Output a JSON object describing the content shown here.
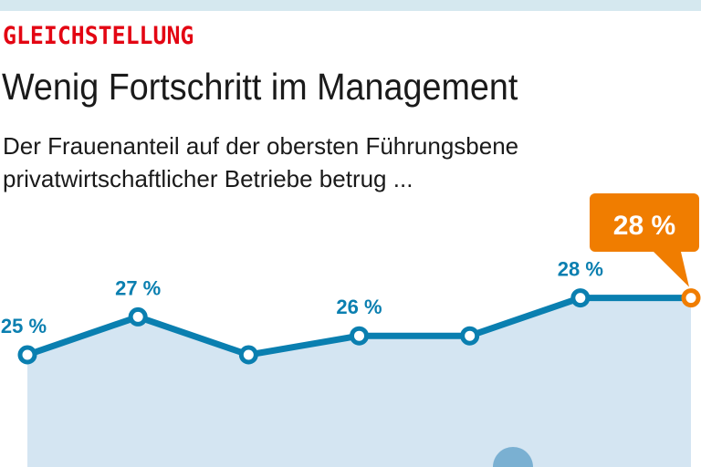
{
  "header": {
    "kicker": "GLEICHSTELLUNG",
    "title": "Wenig Fortschritt im Management",
    "subtitle": "Der Frauenanteil auf der obersten Führungsbene privatwirtschaftlicher Betriebe betrug ..."
  },
  "chart_data": {
    "type": "area",
    "values": [
      25,
      27,
      25,
      26,
      26,
      28,
      28
    ],
    "data_labels": [
      "25 %",
      "27 %",
      "",
      "26 %",
      "",
      "28 %",
      ""
    ],
    "highlight_label": "28 %",
    "ylabel": "",
    "xlabel": "",
    "colors": {
      "line": "#0a7fb0",
      "fill": "#d4e5f2",
      "highlight": "#f07d00",
      "kicker": "#e30613"
    }
  }
}
